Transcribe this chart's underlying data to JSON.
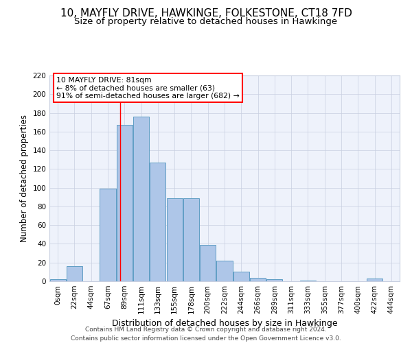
{
  "title": "10, MAYFLY DRIVE, HAWKINGE, FOLKESTONE, CT18 7FD",
  "subtitle": "Size of property relative to detached houses in Hawkinge",
  "xlabel": "Distribution of detached houses by size in Hawkinge",
  "ylabel": "Number of detached properties",
  "bar_labels": [
    "0sqm",
    "22sqm",
    "44sqm",
    "67sqm",
    "89sqm",
    "111sqm",
    "133sqm",
    "155sqm",
    "178sqm",
    "200sqm",
    "222sqm",
    "244sqm",
    "266sqm",
    "289sqm",
    "311sqm",
    "333sqm",
    "355sqm",
    "377sqm",
    "400sqm",
    "422sqm",
    "444sqm"
  ],
  "bar_values": [
    2,
    16,
    0,
    99,
    167,
    176,
    127,
    89,
    89,
    39,
    22,
    10,
    4,
    2,
    0,
    1,
    0,
    0,
    0,
    3,
    0
  ],
  "bar_color": "#aec6e8",
  "bar_edge_color": "#5f9ec4",
  "ylim": [
    0,
    220
  ],
  "yticks": [
    0,
    20,
    40,
    60,
    80,
    100,
    120,
    140,
    160,
    180,
    200,
    220
  ],
  "property_label": "10 MAYFLY DRIVE: 81sqm",
  "annotation_line1": "← 8% of detached houses are smaller (63)",
  "annotation_line2": "91% of semi-detached houses are larger (682) →",
  "vline_x_index": 3.73,
  "footer_line1": "Contains HM Land Registry data © Crown copyright and database right 2024.",
  "footer_line2": "Contains public sector information licensed under the Open Government Licence v3.0.",
  "bg_color": "#eef2fb",
  "grid_color": "#c8cfe0",
  "title_fontsize": 11,
  "subtitle_fontsize": 9.5,
  "ylabel_fontsize": 8.5,
  "xlabel_fontsize": 9,
  "tick_fontsize": 7.5,
  "footer_fontsize": 6.5
}
